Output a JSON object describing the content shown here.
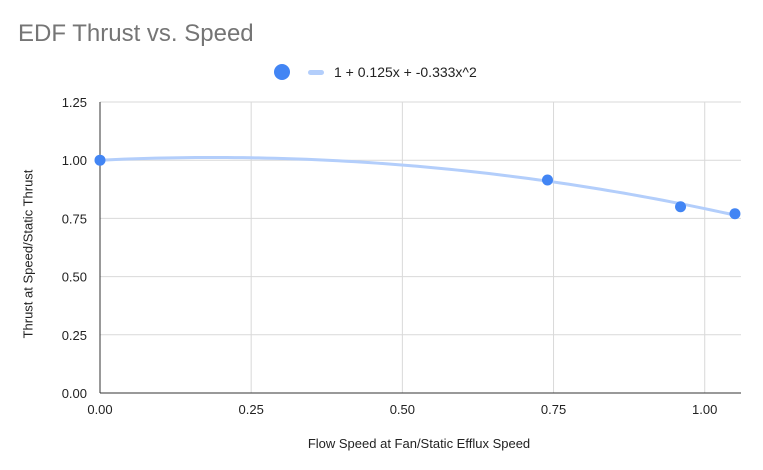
{
  "chart_data": {
    "type": "scatter",
    "title": "EDF Thrust vs. Speed",
    "xlabel": "Flow Speed at Fan/Static Efflux Speed",
    "ylabel": "Thrust at Speed/Static Thrust",
    "xlim": [
      0,
      1.06
    ],
    "ylim": [
      0,
      1.25
    ],
    "x_ticks": [
      "0.00",
      "0.25",
      "0.50",
      "0.75",
      "1.00"
    ],
    "y_ticks": [
      "0.00",
      "0.25",
      "0.50",
      "0.75",
      "1.00",
      "1.25"
    ],
    "grid": true,
    "legend_position": "top",
    "series": [
      {
        "x": [
          0.0,
          0.74,
          0.96,
          1.05
        ],
        "y": [
          1.0,
          0.915,
          0.8,
          0.77
        ],
        "color": "#4285f4"
      }
    ],
    "trendline": {
      "name": "1 + 0.125x + -0.333x^2",
      "coefficients": [
        1,
        0.125,
        -0.333
      ],
      "x_range": [
        0,
        1.05
      ],
      "color": "#b3cefb"
    }
  }
}
